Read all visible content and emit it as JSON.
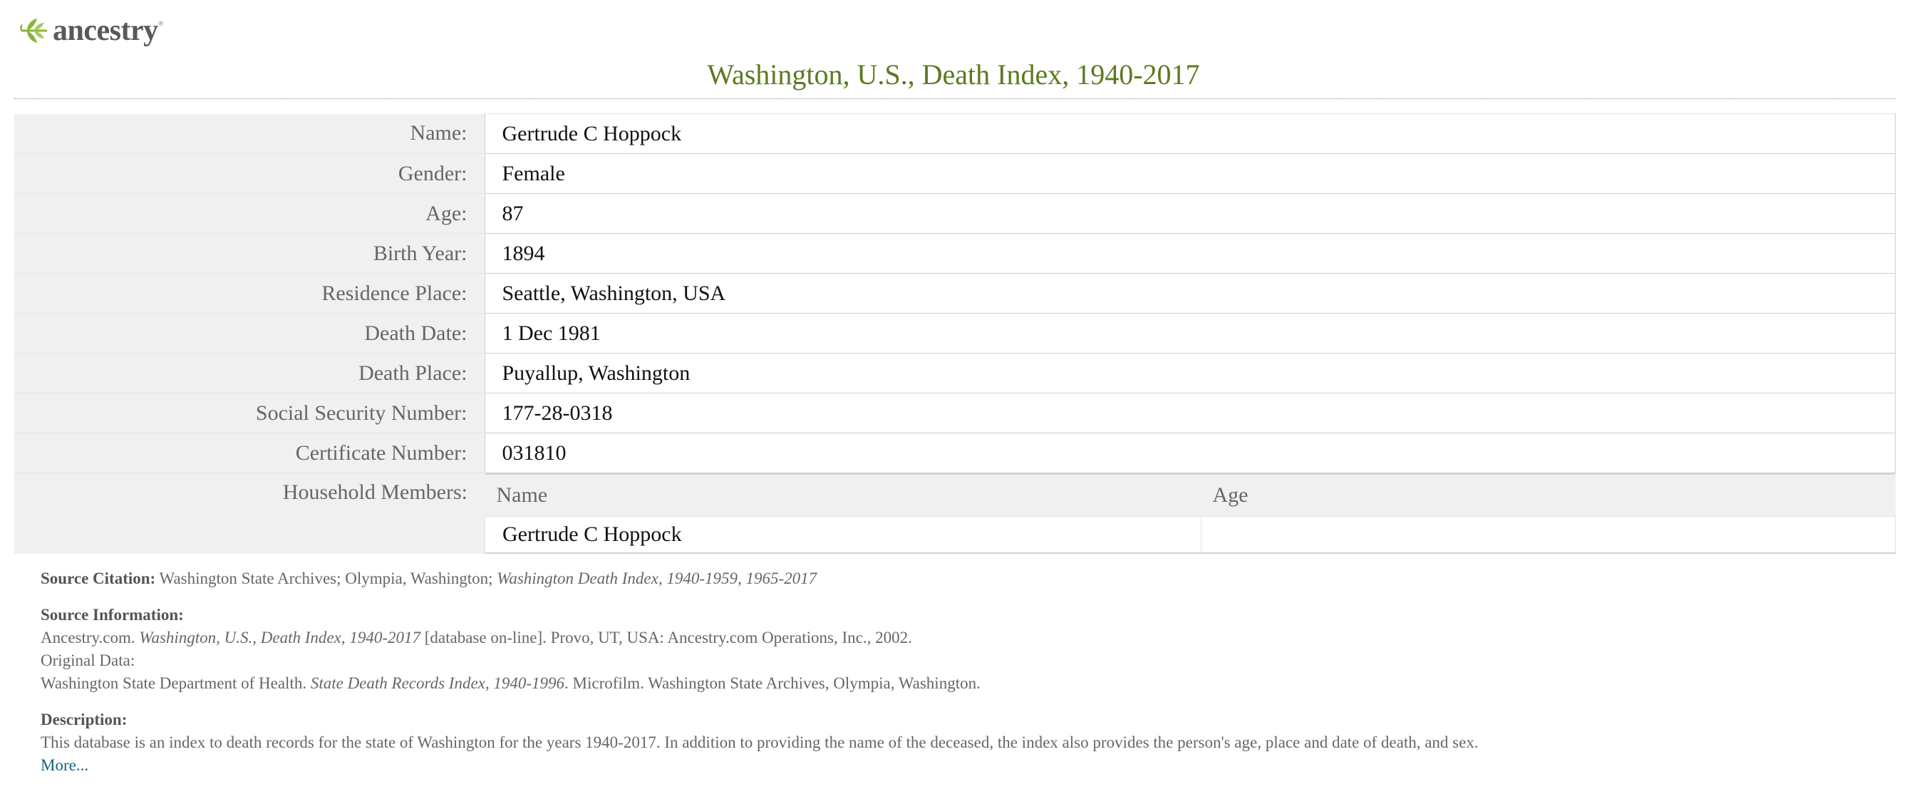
{
  "brand": {
    "name": "ancestry",
    "tm": "®",
    "logo_icon": "leaf-icon",
    "logo_color": "#8bb43a"
  },
  "page": {
    "title": "Washington, U.S., Death Index, 1940-2017",
    "title_color": "#5b7a1e"
  },
  "record": {
    "fields": [
      {
        "label": "Name:",
        "value": "Gertrude C Hoppock"
      },
      {
        "label": "Gender:",
        "value": "Female"
      },
      {
        "label": "Age:",
        "value": "87"
      },
      {
        "label": "Birth Year:",
        "value": "1894"
      },
      {
        "label": "Residence Place:",
        "value": "Seattle, Washington, USA"
      },
      {
        "label": "Death Date:",
        "value": "1 Dec 1981"
      },
      {
        "label": "Death Place:",
        "value": "Puyallup, Washington"
      },
      {
        "label": "Social Security Number:",
        "value": "177-28-0318"
      },
      {
        "label": "Certificate Number:",
        "value": "031810"
      }
    ],
    "household": {
      "label": "Household Members:",
      "columns": [
        "Name",
        "Age"
      ],
      "rows": [
        {
          "name": "Gertrude C Hoppock",
          "age": ""
        }
      ]
    }
  },
  "source": {
    "citation_label": "Source Citation:",
    "citation_text": "Washington State Archives; Olympia, Washington;",
    "citation_italic": "Washington Death Index, 1940-1959, 1965-2017",
    "info_label": "Source Information:",
    "info_line1_pre": "Ancestry.com.",
    "info_line1_italic": "Washington, U.S., Death Index, 1940-2017",
    "info_line1_post": "[database on-line]. Provo, UT, USA: Ancestry.com Operations, Inc., 2002.",
    "info_line2": "Original Data:",
    "info_line3_pre": "Washington State Department of Health.",
    "info_line3_italic": "State Death Records Index, 1940-1996",
    "info_line3_post": ". Microfilm. Washington State Archives, Olympia, Washington.",
    "description_label": "Description:",
    "description_text": "This database is an index to death records for the state of Washington for the years 1940-2017. In addition to providing the name of the deceased, the index also provides the person's age, place and date of death, and sex.",
    "more_link": "More...",
    "link_color": "#1a5e80"
  }
}
